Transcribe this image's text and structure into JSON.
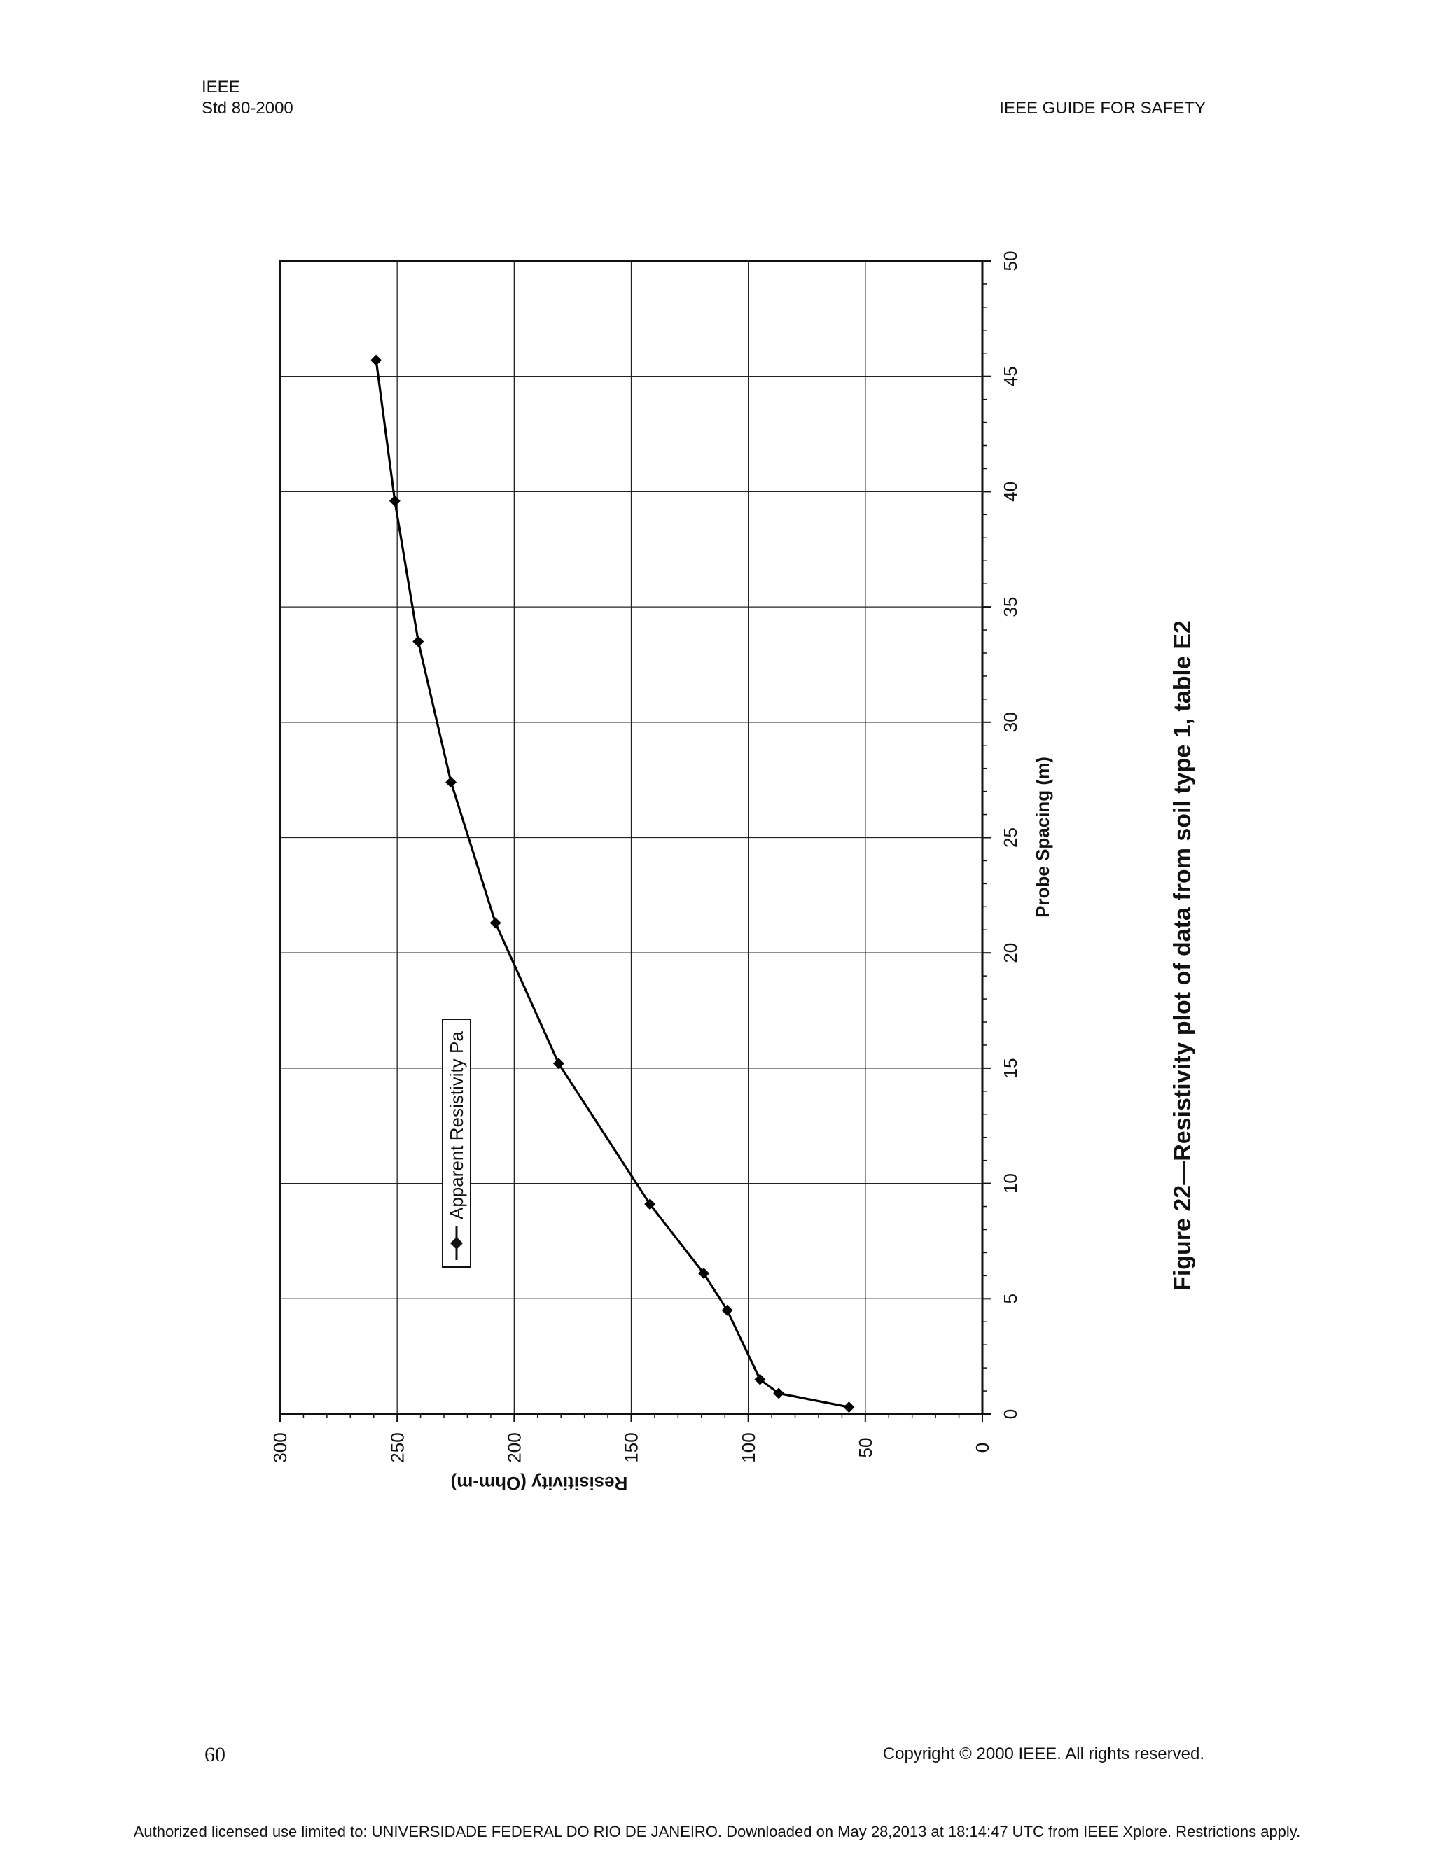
{
  "header": {
    "org": "IEEE",
    "std": "Std 80-2000",
    "running_title": "IEEE GUIDE FOR SAFETY"
  },
  "figure": {
    "caption": "Figure 22—Resistivity plot of data from soil type 1, table E2"
  },
  "chart_data": {
    "type": "line",
    "orientation": "page rotated 90 degrees counter-clockwise",
    "title": "",
    "xlabel": "Probe Spacing (m)",
    "ylabel": "Resisitivity (Ohm-m)",
    "xlim": [
      0,
      50
    ],
    "ylim": [
      0,
      300
    ],
    "x_ticks": [
      0,
      5,
      10,
      15,
      20,
      25,
      30,
      35,
      40,
      45,
      50
    ],
    "y_ticks": [
      0,
      50,
      100,
      150,
      200,
      250,
      300
    ],
    "x_tick_labels": [
      "0",
      "5",
      "10",
      "15",
      "20",
      "25",
      "30",
      "35",
      "40",
      "45",
      "50"
    ],
    "y_tick_labels": [
      "0",
      "50",
      "100",
      "150",
      "200",
      "250",
      "300"
    ],
    "grid": true,
    "legend_position": "upper-left of plot area (rotated view)",
    "series": [
      {
        "name": "Apparent Resistivity Pa",
        "marker": "diamond",
        "color": "#000000",
        "points": [
          {
            "x": 0.3,
            "y": 57
          },
          {
            "x": 0.9,
            "y": 87
          },
          {
            "x": 1.5,
            "y": 95
          },
          {
            "x": 4.5,
            "y": 109
          },
          {
            "x": 6.1,
            "y": 119
          },
          {
            "x": 9.1,
            "y": 142
          },
          {
            "x": 15.2,
            "y": 181
          },
          {
            "x": 21.3,
            "y": 208
          },
          {
            "x": 27.4,
            "y": 227
          },
          {
            "x": 33.5,
            "y": 241
          },
          {
            "x": 39.6,
            "y": 251
          },
          {
            "x": 45.7,
            "y": 259
          }
        ]
      }
    ]
  },
  "footer": {
    "page_number": "60",
    "copyright": "Copyright © 2000 IEEE. All rights reserved.",
    "authorization": "Authorized licensed use limited to: UNIVERSIDADE FEDERAL DO RIO DE JANEIRO. Downloaded on May 28,2013 at 18:14:47 UTC from IEEE Xplore.  Restrictions apply."
  }
}
